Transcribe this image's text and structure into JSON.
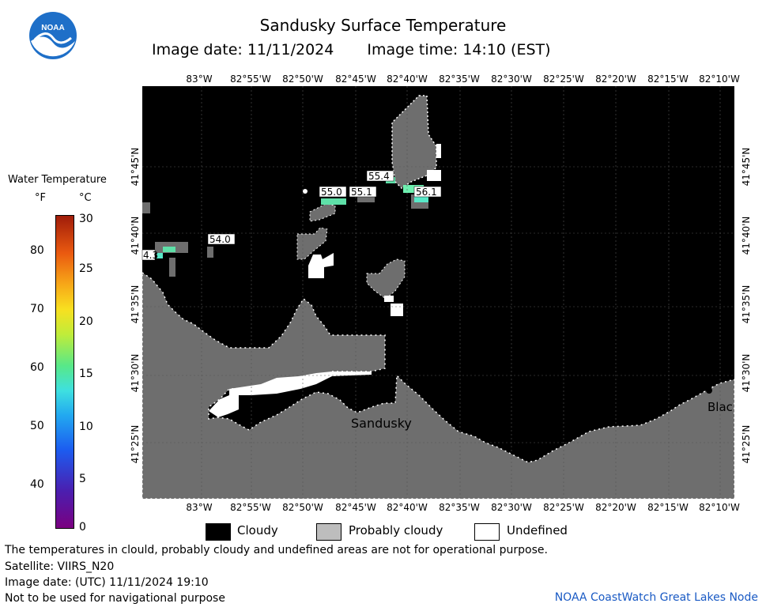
{
  "header": {
    "title": "Sandusky Surface Temperature",
    "image_date": "Image date: 11/11/2024",
    "image_time": "Image time: 14:10 (EST)"
  },
  "logo": {
    "text": "NOAA",
    "icon": "noaa-logo-icon"
  },
  "colorbar": {
    "title": "Water Temperature",
    "unit_f": "°F",
    "unit_c": "°C",
    "f_ticks": [
      "80",
      "70",
      "60",
      "50",
      "40"
    ],
    "c_ticks": [
      "30",
      "25",
      "20",
      "15",
      "10",
      "5",
      "0"
    ]
  },
  "map": {
    "top_labels": [
      "83°W",
      "82°55'W",
      "82°50'W",
      "82°45'W",
      "82°40'W",
      "82°35'W",
      "82°30'W",
      "82°25'W",
      "82°20'W",
      "82°15'W",
      "82°10'W"
    ],
    "bottom_labels": [
      "83°W",
      "82°55'W",
      "82°50'W",
      "82°45'W",
      "82°40'W",
      "82°35'W",
      "82°30'W",
      "82°25'W",
      "82°20'W",
      "82°15'W",
      "82°10'W"
    ],
    "lat_labels": [
      "41°45'N",
      "41°40'N",
      "41°35'N",
      "41°30'N",
      "41°25'N"
    ],
    "temps": [
      "55.4",
      "55.0",
      "55.1",
      "56.1",
      "54.0",
      "4.3"
    ],
    "places": [
      "Sandusky",
      "Blac"
    ],
    "colors": {
      "cloud": "#000000",
      "land": "#6e6e6e",
      "undefined": "#ffffff",
      "water": "#5ee0a8"
    }
  },
  "legend": {
    "cloudy": "Cloudy",
    "probably_cloudy": "Probably cloudy",
    "undefined": "Undefined"
  },
  "footer": {
    "note": "The temperatures in clould, probably cloudy and undefined areas are not for operational purpose.",
    "satellite": "Satellite: VIIRS_N20",
    "utc_date": "Image date: (UTC) 11/11/2024  19:10",
    "nav": "Not to be used for navigational purpose",
    "node": "NOAA CoastWatch Great Lakes Node"
  }
}
